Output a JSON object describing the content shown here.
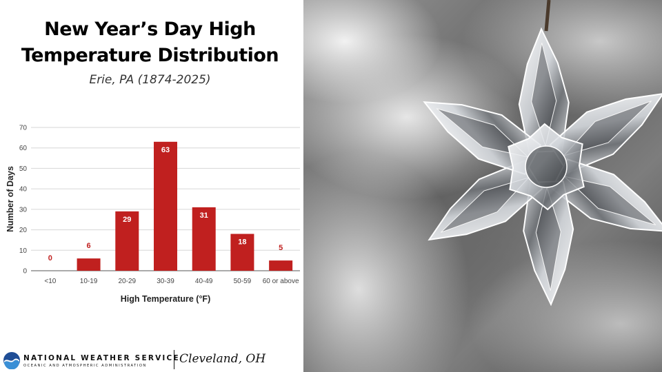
{
  "title_lines": [
    "New Year’s Day High",
    "Temperature Distribution"
  ],
  "subtitle": "Erie, PA (1874-2025)",
  "chart_data": {
    "type": "bar",
    "categories": [
      "<10",
      "10-19",
      "20-29",
      "30-39",
      "40-49",
      "50-59",
      "60 or above"
    ],
    "values": [
      0,
      6,
      29,
      63,
      31,
      18,
      5
    ],
    "data_labels": [
      "0",
      "6",
      "29",
      "63",
      "31",
      "18",
      "5"
    ],
    "xlabel": "High Temperature (°F)",
    "ylabel": "Number of Days",
    "ylim": [
      0,
      70
    ],
    "yticks": [
      0,
      10,
      20,
      30,
      40,
      50,
      60,
      70
    ],
    "grid": true,
    "bar_color": "#c0201f"
  },
  "footer": {
    "org_name": "NATIONAL WEATHER SERVICE",
    "org_subtitle": "OCEANIC AND ATMOSPHERIC ADMINISTRATION",
    "office": "Cleveland, OH",
    "logo_icon": "noaa-logo-icon",
    "photo_icon": "snowflake-ornament-photo"
  }
}
